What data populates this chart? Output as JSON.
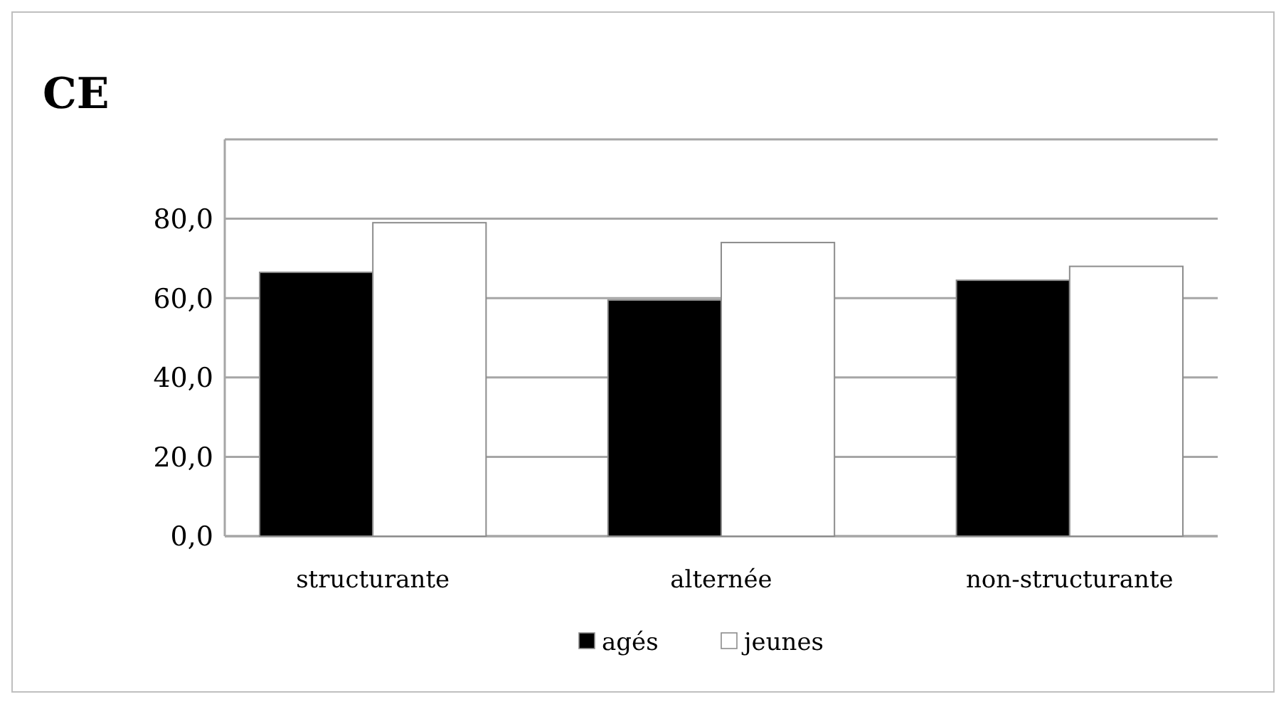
{
  "chart_data": {
    "type": "bar",
    "title": "CE",
    "categories": [
      "structurante",
      "alternée",
      "non-structurante"
    ],
    "series": [
      {
        "name": "agés",
        "color": "#000000",
        "values": [
          66.5,
          59.5,
          64.5
        ]
      },
      {
        "name": "jeunes",
        "color": "#ffffff",
        "values": [
          79,
          74,
          68
        ]
      }
    ],
    "ylim": [
      0,
      100
    ],
    "yticks": [
      {
        "value": 0,
        "label": "0,0"
      },
      {
        "value": 20,
        "label": "20,0"
      },
      {
        "value": 40,
        "label": "40,0"
      },
      {
        "value": 60,
        "label": "60,0"
      },
      {
        "value": 80,
        "label": "80,0"
      },
      {
        "value": 100,
        "label": null
      }
    ],
    "grid": "y",
    "legend": "bottom"
  }
}
